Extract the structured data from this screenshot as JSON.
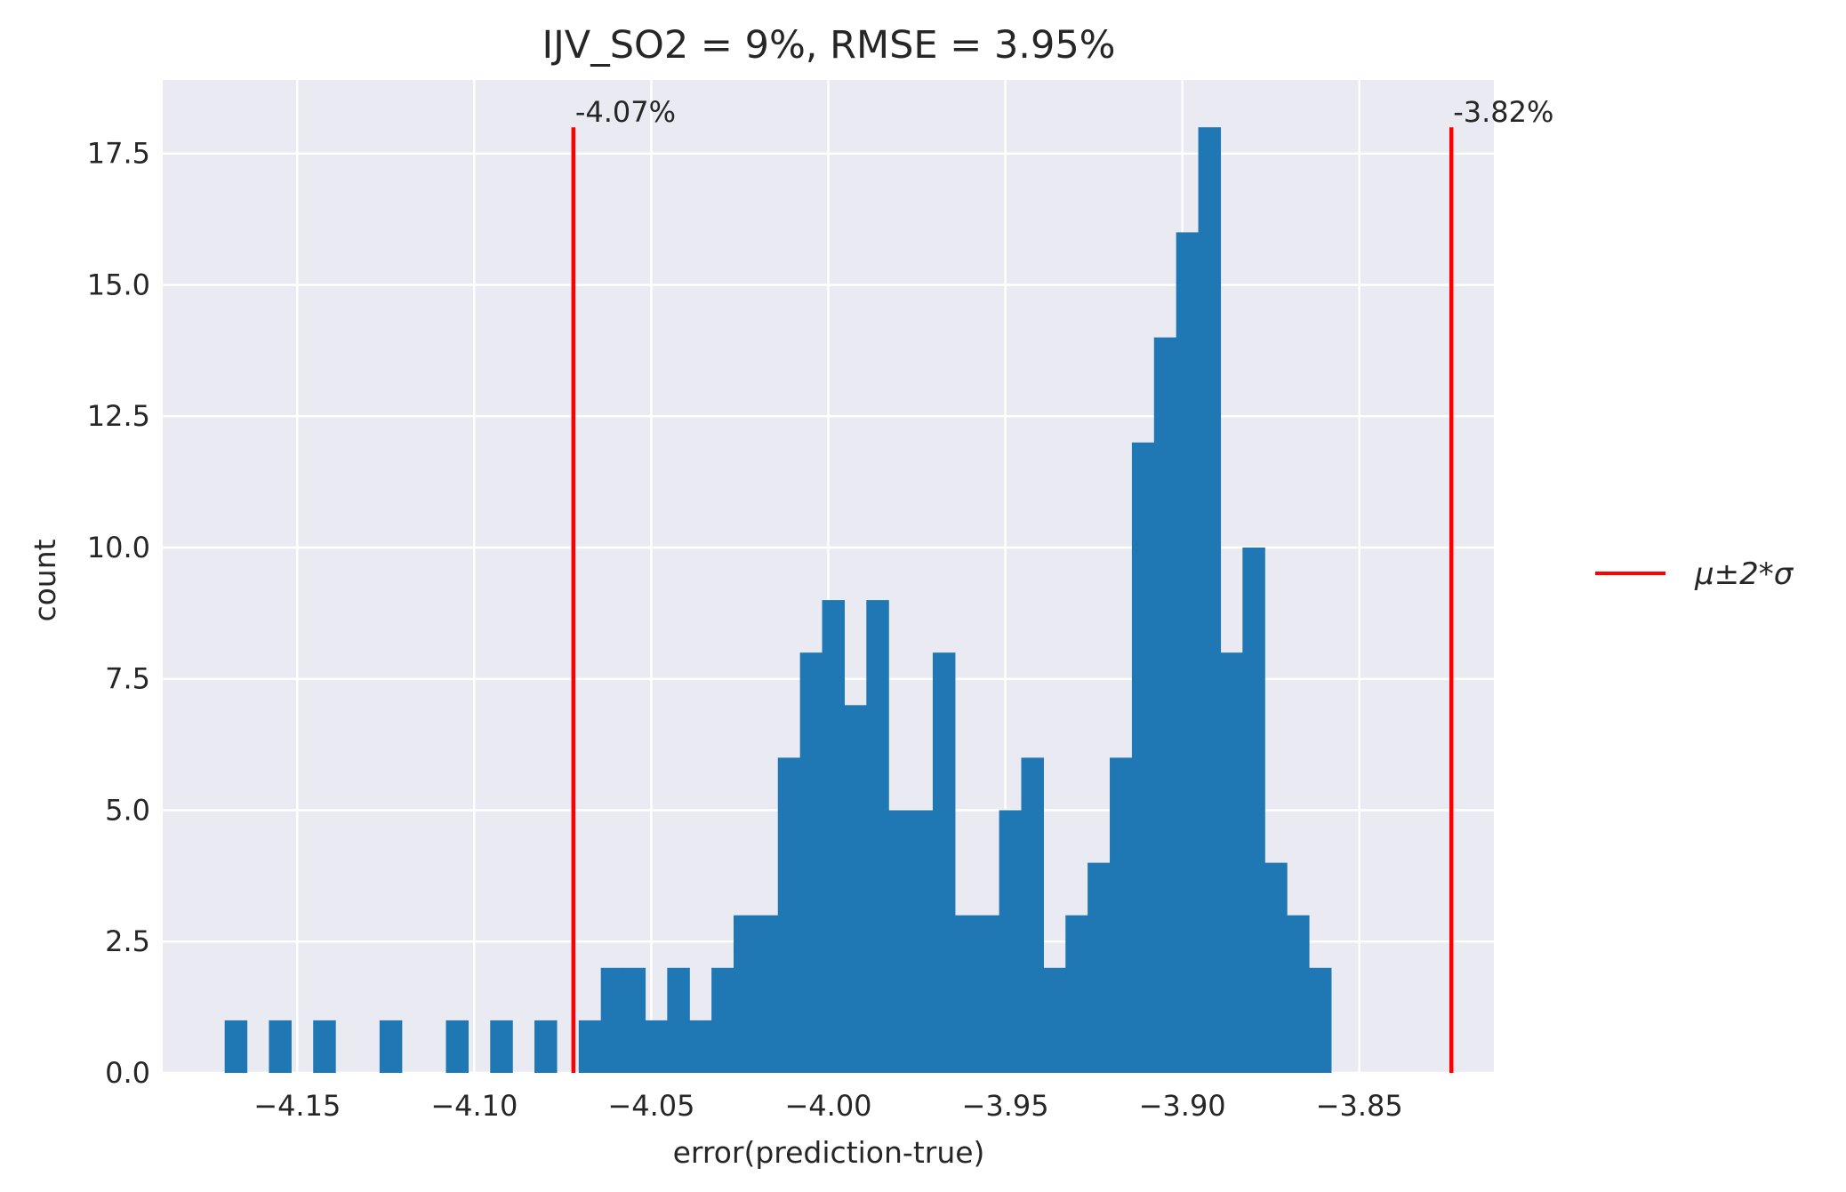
{
  "chart_data": {
    "type": "bar",
    "title": "IJV_SO2 = 9%, RMSE = 3.95%",
    "xlabel": "error(prediction-true)",
    "ylabel": "count",
    "xlim": [
      -4.188,
      -3.812
    ],
    "ylim": [
      0,
      18.9
    ],
    "grid": true,
    "legend_position": "right",
    "x_ticks": [
      -4.15,
      -4.1,
      -4.05,
      -4.0,
      -3.95,
      -3.9,
      -3.85
    ],
    "x_tick_labels": [
      "−4.15",
      "−4.10",
      "−4.05",
      "−4.00",
      "−3.95",
      "−3.90",
      "−3.85"
    ],
    "y_ticks": [
      0,
      2.5,
      5,
      7.5,
      10,
      12.5,
      15,
      17.5
    ],
    "y_tick_labels": [
      "0.0",
      "2.5",
      "5.0",
      "7.5",
      "10.0",
      "12.5",
      "15.0",
      "17.5"
    ],
    "bin_start": -4.1705,
    "bin_width": 0.00625,
    "counts": [
      1,
      0,
      1,
      0,
      1,
      0,
      0,
      1,
      0,
      0,
      1,
      0,
      1,
      0,
      1,
      0,
      1,
      2,
      2,
      1,
      2,
      1,
      2,
      3,
      3,
      6,
      8,
      9,
      7,
      9,
      5,
      5,
      8,
      3,
      3,
      5,
      6,
      2,
      3,
      4,
      6,
      12,
      14,
      16,
      18,
      8,
      10,
      4,
      3,
      2
    ],
    "bar_color": "#1f77b4",
    "vlines": [
      {
        "x": -4.072,
        "ymax": 18,
        "label": "-4.07%"
      },
      {
        "x": -3.824,
        "ymax": 18,
        "label": "-3.82%"
      }
    ],
    "vline_color": "#ff0000",
    "legend": [
      {
        "label": "μ±2*σ",
        "color": "#ff0000"
      }
    ]
  }
}
